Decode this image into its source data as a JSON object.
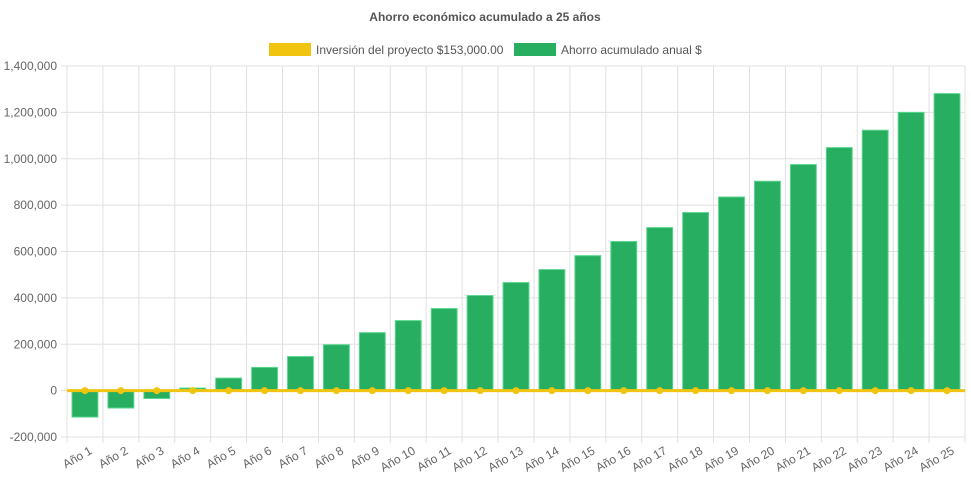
{
  "chart_data": {
    "type": "bar",
    "title": "Ahorro económico acumulado a 25 años",
    "categories": [
      "Año 1",
      "Año 2",
      "Año 3",
      "Año 4",
      "Año 5",
      "Año 6",
      "Año 7",
      "Año 8",
      "Año 9",
      "Año 10",
      "Año 11",
      "Año 12",
      "Año 13",
      "Año 14",
      "Año 15",
      "Año 16",
      "Año 17",
      "Año 18",
      "Año 19",
      "Año 20",
      "Año 21",
      "Año 22",
      "Año 23",
      "Año 24",
      "Año 25"
    ],
    "series": [
      {
        "name": "Inversión del proyecto $153,000.00",
        "type": "line",
        "color": "#f1c40f",
        "values": [
          0,
          0,
          0,
          0,
          0,
          0,
          0,
          0,
          0,
          0,
          0,
          0,
          0,
          0,
          0,
          0,
          0,
          0,
          0,
          0,
          0,
          0,
          0,
          0,
          0
        ]
      },
      {
        "name": "Ahorro acumulado anual $",
        "type": "bar",
        "color": "#27ae60",
        "values": [
          -114000,
          -75000,
          -34000,
          11000,
          54000,
          100000,
          147000,
          198000,
          250000,
          302000,
          354000,
          410000,
          466000,
          522000,
          582000,
          643000,
          703000,
          768000,
          835000,
          903000,
          975000,
          1048000,
          1123000,
          1200000,
          1281000
        ]
      }
    ],
    "ylim": [
      -200000,
      1400000
    ],
    "yticks": [
      "-200,000",
      "0",
      "200,000",
      "400,000",
      "600,000",
      "800,000",
      "1,000,000",
      "1,200,000",
      "1,400,000"
    ],
    "grid": true,
    "legend": "top"
  }
}
